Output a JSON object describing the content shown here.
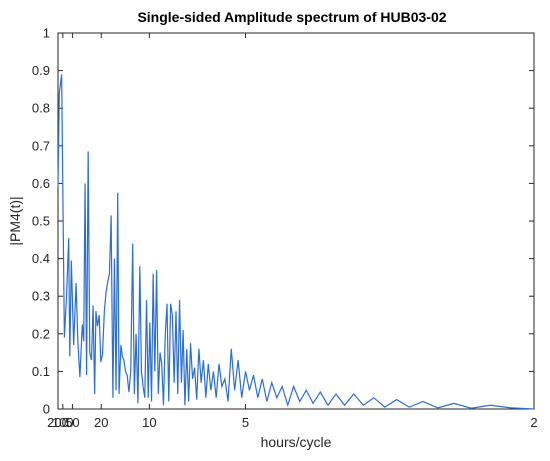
{
  "chart_data": {
    "type": "line",
    "title": "Single-sided Amplitude spectrum of HUB03-02",
    "xlabel": "hours/cycle",
    "ylabel": "|PM4(t)|",
    "x_scale": "reciprocal",
    "xlim": [
      200,
      2
    ],
    "ylim": [
      0,
      1
    ],
    "xticks": [
      {
        "value": 200,
        "label": "200"
      },
      {
        "value": 100,
        "label": "100"
      },
      {
        "value": 50,
        "label": "50"
      },
      {
        "value": 20,
        "label": "20"
      },
      {
        "value": 10,
        "label": "10"
      },
      {
        "value": 5,
        "label": "5"
      },
      {
        "value": 2,
        "label": "2"
      }
    ],
    "yticks": [
      {
        "value": 0,
        "label": "0"
      },
      {
        "value": 0.1,
        "label": "0.1"
      },
      {
        "value": 0.2,
        "label": "0.2"
      },
      {
        "value": 0.3,
        "label": "0.3"
      },
      {
        "value": 0.4,
        "label": "0.4"
      },
      {
        "value": 0.5,
        "label": "0.5"
      },
      {
        "value": 0.6,
        "label": "0.6"
      },
      {
        "value": 0.7,
        "label": "0.7"
      },
      {
        "value": 0.8,
        "label": "0.8"
      },
      {
        "value": 0.9,
        "label": "0.9"
      },
      {
        "value": 1,
        "label": "1"
      }
    ],
    "grid": false,
    "line_color": "#2c6ed1",
    "series": [
      {
        "x": [
          200,
          158,
          114,
          86,
          72,
          62,
          58,
          53,
          47,
          42,
          39,
          36,
          33,
          31.5,
          30.2,
          28.8,
          27.5,
          26.3,
          25.1,
          24.1,
          23.2,
          22.5,
          21.7,
          20.9,
          20.2,
          19.5,
          18.8,
          18.2,
          17.6,
          17.1,
          16.6,
          16.1,
          15.7,
          15.3,
          14.9,
          14.6,
          14.2,
          13.9,
          13.6,
          13.3,
          13.0,
          12.7,
          12.4,
          12.1,
          11.85,
          11.6,
          11.35,
          11.1,
          10.9,
          10.7,
          10.5,
          10.3,
          10.12,
          9.95,
          9.78,
          9.62,
          9.46,
          9.3,
          9.15,
          9.0,
          8.86,
          8.72,
          8.58,
          8.45,
          8.32,
          8.19,
          8.07,
          7.95,
          7.83,
          7.72,
          7.61,
          7.5,
          7.4,
          7.3,
          7.2,
          7.1,
          7.0,
          6.9,
          6.8,
          6.7,
          6.6,
          6.5,
          6.4,
          6.3,
          6.2,
          6.1,
          6.0,
          5.9,
          5.8,
          5.7,
          5.6,
          5.5,
          5.4,
          5.3,
          5.2,
          5.1,
          5.0,
          4.9,
          4.8,
          4.7,
          4.6,
          4.5,
          4.4,
          4.3,
          4.2,
          4.1,
          4.0,
          3.9,
          3.8,
          3.7,
          3.6,
          3.5,
          3.4,
          3.3,
          3.2,
          3.1,
          3.0,
          2.9,
          2.8,
          2.7,
          2.6,
          2.5,
          2.4,
          2.3,
          2.2,
          2.1,
          2.0
        ],
        "y": [
          0.59,
          0.84,
          0.89,
          0.19,
          0.3,
          0.455,
          0.14,
          0.395,
          0.17,
          0.335,
          0.18,
          0.085,
          0.225,
          0.18,
          0.6,
          0.09,
          0.685,
          0.15,
          0.13,
          0.275,
          0.04,
          0.26,
          0.22,
          0.25,
          0.125,
          0.145,
          0.26,
          0.31,
          0.34,
          0.36,
          0.515,
          0.03,
          0.4,
          0.05,
          0.575,
          0.04,
          0.17,
          0.14,
          0.13,
          0.1,
          0.09,
          0.045,
          0.1,
          0.44,
          0.04,
          0.2,
          0.015,
          0.38,
          0.1,
          0.06,
          0.03,
          0.29,
          0.03,
          0.23,
          0.02,
          0.36,
          0.1,
          0.37,
          0.04,
          0.15,
          0.12,
          0.01,
          0.2,
          0.28,
          0.02,
          0.28,
          0.25,
          0.07,
          0.26,
          0.04,
          0.29,
          0.07,
          0.21,
          0.01,
          0.16,
          0.02,
          0.175,
          0.08,
          0.11,
          0.025,
          0.16,
          0.07,
          0.13,
          0.03,
          0.12,
          0.05,
          0.1,
          0.03,
          0.12,
          0.06,
          0.08,
          0.02,
          0.16,
          0.05,
          0.13,
          0.03,
          0.1,
          0.05,
          0.09,
          0.03,
          0.08,
          0.02,
          0.07,
          0.03,
          0.06,
          0.01,
          0.06,
          0.02,
          0.05,
          0.015,
          0.045,
          0.01,
          0.04,
          0.01,
          0.04,
          0.01,
          0.03,
          0.005,
          0.025,
          0.005,
          0.02,
          0.003,
          0.015,
          0.002,
          0.01,
          0.003,
          0.0
        ]
      }
    ]
  }
}
